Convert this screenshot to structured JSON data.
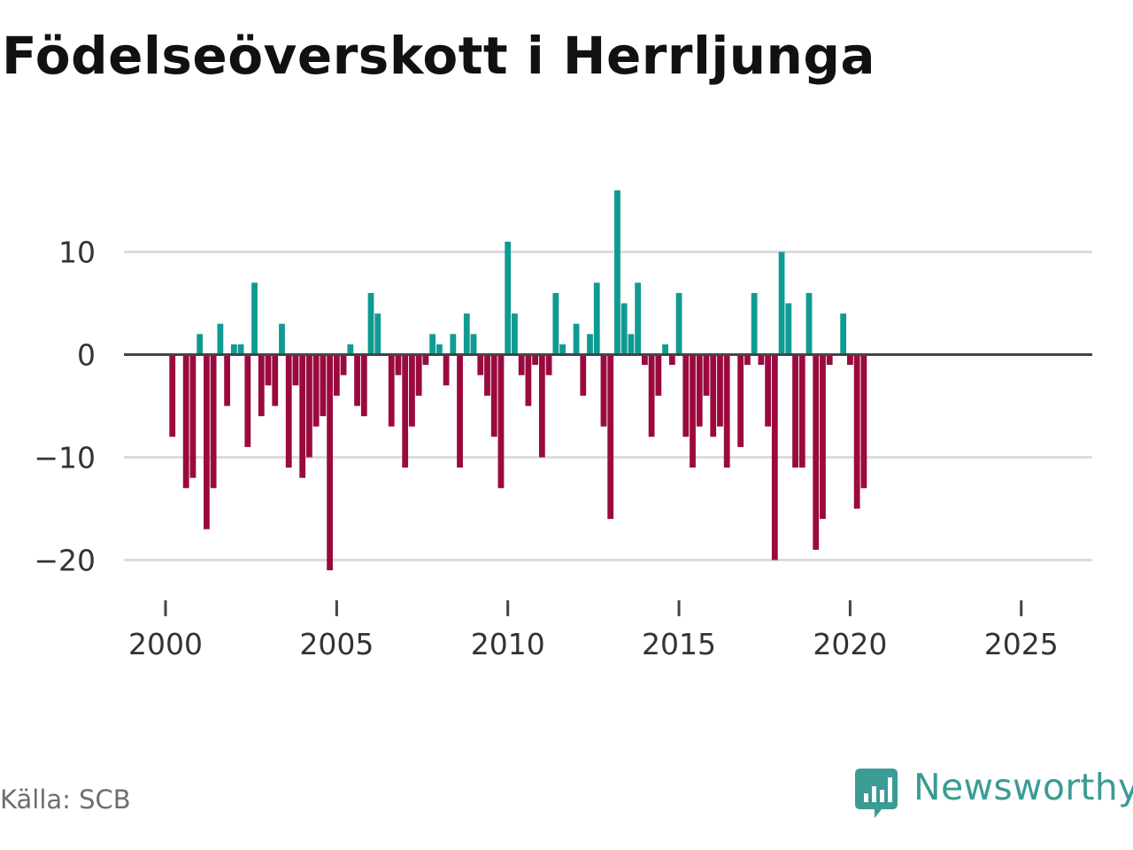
{
  "title": "Födelseöverskott i Herrljunga",
  "source": "Källa: SCB",
  "brand": "Newsworthy",
  "colors": {
    "positive": "#0f9b93",
    "negative": "#9a0a3e",
    "grid": "#dcdcdc",
    "zero_line": "#444444",
    "axis_text": "#333333",
    "brand": "#3a9c94"
  },
  "chart_data": {
    "type": "bar",
    "title": "Födelseöverskott i Herrljunga",
    "xlabel": "",
    "ylabel": "",
    "frequency": "monthly-ish (about 12 bars per year)",
    "x_start": 2000.2,
    "x_step": 0.2,
    "xlim": [
      1998.7,
      2027.1
    ],
    "ylim": [
      -24,
      21
    ],
    "y_ticks": [
      10,
      0,
      -10,
      -20
    ],
    "y_tick_labels": [
      "10",
      "0",
      "−10",
      "−20"
    ],
    "x_ticks": [
      2000,
      2005,
      2010,
      2015,
      2020,
      2025
    ],
    "x_tick_labels": [
      "2000",
      "2005",
      "2010",
      "2015",
      "2020",
      "2025"
    ],
    "values": [
      -8,
      0,
      -13,
      -12,
      2,
      -17,
      -13,
      3,
      -5,
      1,
      1,
      -9,
      7,
      -6,
      -3,
      -5,
      3,
      -11,
      -3,
      -12,
      -10,
      -7,
      -6,
      -21,
      -4,
      -2,
      1,
      -5,
      -6,
      6,
      4,
      0,
      -7,
      -2,
      -11,
      -7,
      -4,
      -1,
      2,
      1,
      -3,
      2,
      -11,
      4,
      2,
      -2,
      -4,
      -8,
      -13,
      11,
      4,
      -2,
      -5,
      -1,
      -10,
      -2,
      6,
      1,
      0,
      3,
      -4,
      2,
      7,
      -7,
      -16,
      16,
      5,
      2,
      7,
      -1,
      -8,
      -4,
      1,
      -1,
      6,
      -8,
      -11,
      -7,
      -4,
      -8,
      -7,
      -11,
      0,
      -9,
      -1,
      6,
      -1,
      -7,
      -20,
      10,
      5,
      -11,
      -11,
      6,
      -19,
      -16,
      -1,
      0,
      4,
      -1,
      -15,
      -13
    ]
  }
}
